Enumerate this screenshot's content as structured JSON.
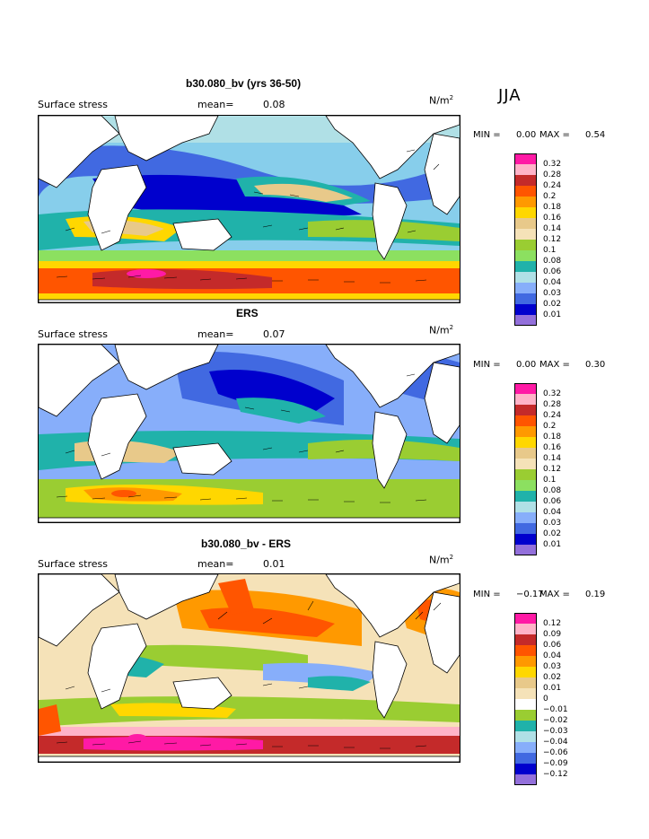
{
  "season": "JJA",
  "panels": [
    {
      "title": "b30.080_bv (yrs 36-50)",
      "variable": "Surface stress",
      "mean_label": "mean=",
      "mean_value": "0.08",
      "units_base": "N/m",
      "units_exp": "2",
      "min_label": "MIN =",
      "min_value": "0.00",
      "max_label": "MAX =",
      "max_value": "0.54",
      "levels": [
        "0.32",
        "0.28",
        "0.24",
        "0.2",
        "0.18",
        "0.16",
        "0.14",
        "0.12",
        "0.1",
        "0.08",
        "0.06",
        "0.04",
        "0.03",
        "0.02",
        "0.01"
      ],
      "colors": [
        "#ff1aa5",
        "#ffb3c8",
        "#c42a2a",
        "#ff5500",
        "#ff9900",
        "#ffd700",
        "#e8c98a",
        "#f5e2b8",
        "#9acd32",
        "#8ce060",
        "#20b2aa",
        "#b0e0e6",
        "#87aefa",
        "#4169e1",
        "#0000cd",
        "#9370db"
      ]
    },
    {
      "title": "ERS",
      "variable": "Surface stress",
      "mean_label": "mean=",
      "mean_value": "0.07",
      "units_base": "N/m",
      "units_exp": "2",
      "min_label": "MIN =",
      "min_value": "0.00",
      "max_label": "MAX =",
      "max_value": "0.30",
      "levels": [
        "0.32",
        "0.28",
        "0.24",
        "0.2",
        "0.18",
        "0.16",
        "0.14",
        "0.12",
        "0.1",
        "0.08",
        "0.06",
        "0.04",
        "0.03",
        "0.02",
        "0.01"
      ],
      "colors": [
        "#ff1aa5",
        "#ffb3c8",
        "#c42a2a",
        "#ff5500",
        "#ff9900",
        "#ffd700",
        "#e8c98a",
        "#f5e2b8",
        "#9acd32",
        "#8ce060",
        "#20b2aa",
        "#b0e0e6",
        "#87aefa",
        "#4169e1",
        "#0000cd",
        "#9370db"
      ]
    },
    {
      "title": "b30.080_bv - ERS",
      "variable": "Surface stress",
      "mean_label": "mean=",
      "mean_value": "0.01",
      "units_base": "N/m",
      "units_exp": "2",
      "min_label": "MIN =",
      "min_value": "−0.17",
      "max_label": "MAX =",
      "max_value": "0.19",
      "levels": [
        "0.12",
        "0.09",
        "0.06",
        "0.04",
        "0.03",
        "0.02",
        "0.01",
        "0",
        "−0.01",
        "−0.02",
        "−0.03",
        "−0.04",
        "−0.06",
        "−0.09",
        "−0.12"
      ],
      "colors": [
        "#ff1aa5",
        "#ffb3c8",
        "#c42a2a",
        "#ff5500",
        "#ff9900",
        "#ffd700",
        "#e8c98a",
        "#f5e2b8",
        "#ffffff",
        "#9acd32",
        "#20b2aa",
        "#b0e0e6",
        "#87aefa",
        "#4169e1",
        "#0000cd",
        "#9370db"
      ]
    }
  ]
}
